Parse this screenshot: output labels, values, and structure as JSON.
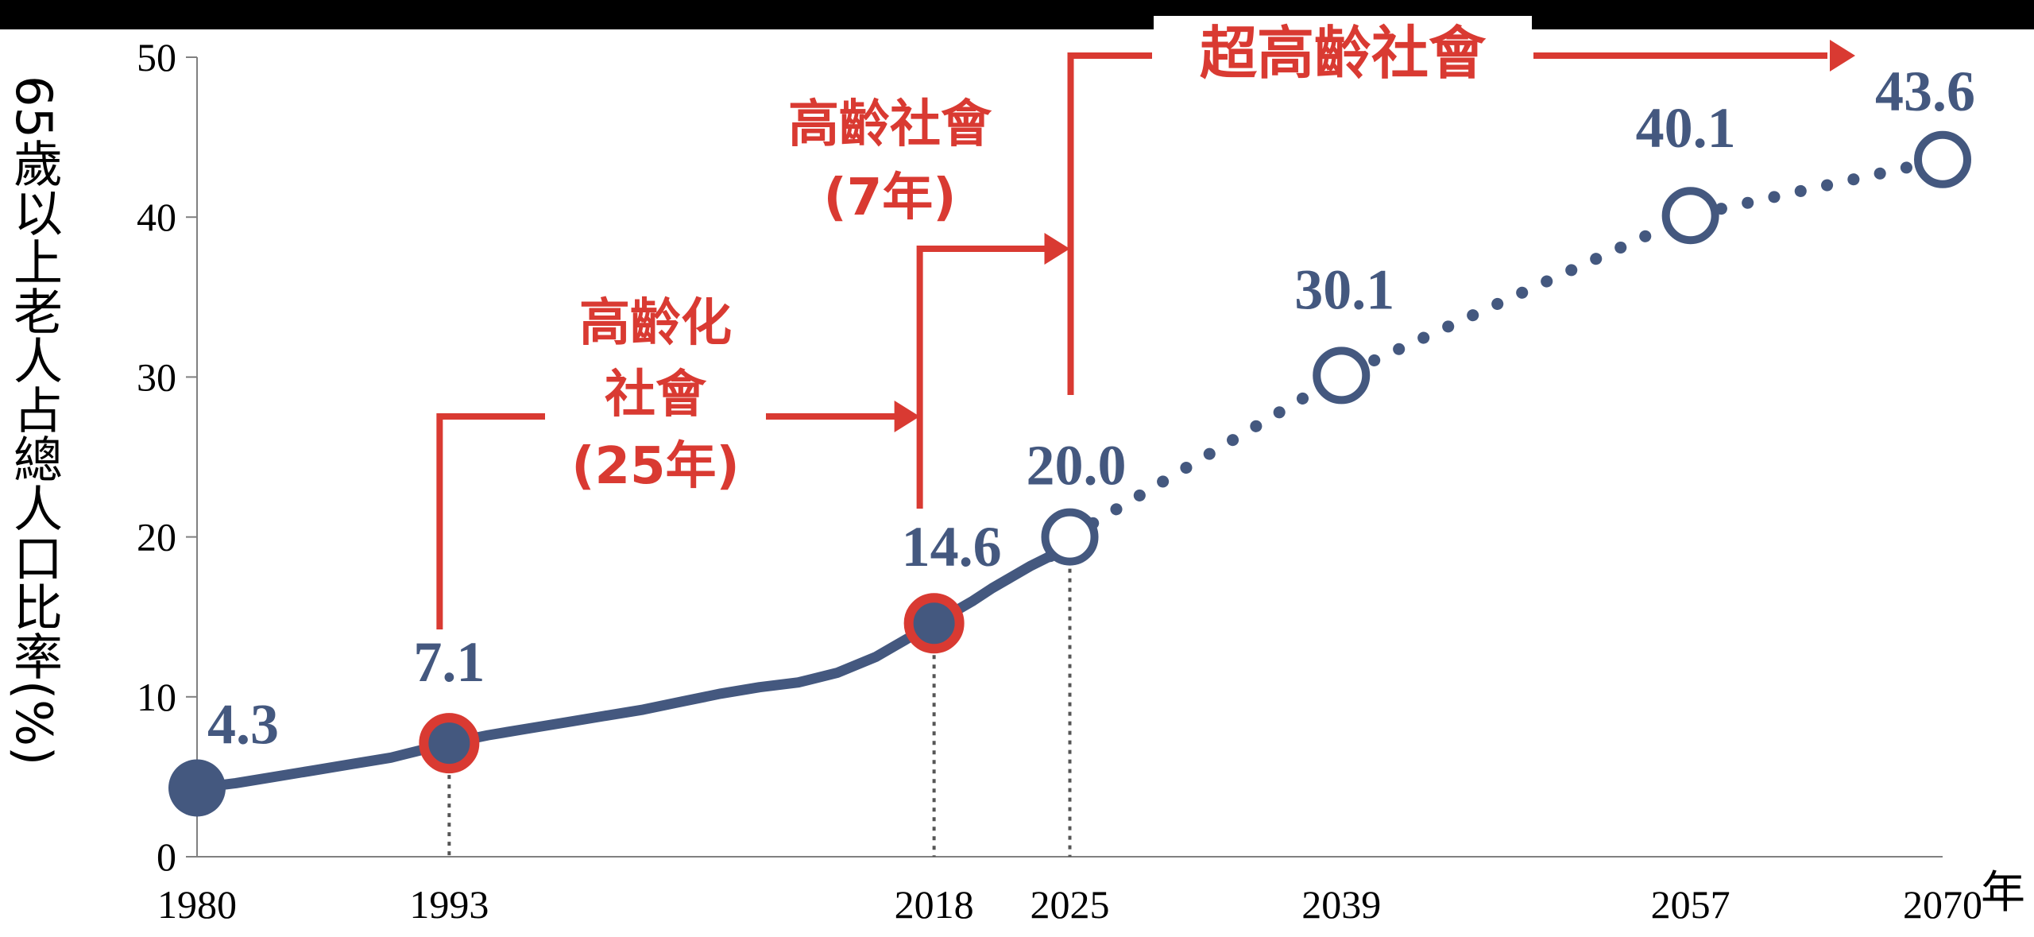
{
  "chart_data": {
    "type": "line",
    "ylabel": "65歲以上老人占總人口比率(%)",
    "xlabel": "年",
    "ylim": [
      0,
      50
    ],
    "yticks": [
      "0",
      "10",
      "20",
      "30",
      "40",
      "50"
    ],
    "xticks": [
      "1980",
      "1993",
      "2018",
      "2025",
      "2039",
      "2057",
      "2070"
    ],
    "xlim": [
      1980,
      2070
    ],
    "series": [
      {
        "type": "actual",
        "x": [
          1980,
          1982,
          1984,
          1986,
          1988,
          1990,
          1992,
          1993,
          1995,
          1997,
          1999,
          2001,
          2003,
          2005,
          2007,
          2009,
          2011,
          2013,
          2015,
          2016,
          2017,
          2018,
          2019,
          2020,
          2021,
          2022,
          2023,
          2024
        ],
        "y": [
          4.3,
          4.6,
          5.0,
          5.4,
          5.8,
          6.2,
          6.8,
          7.1,
          7.6,
          8.0,
          8.4,
          8.8,
          9.2,
          9.7,
          10.2,
          10.6,
          10.9,
          11.5,
          12.5,
          13.2,
          13.9,
          14.6,
          15.3,
          16.0,
          16.8,
          17.5,
          18.2,
          18.8
        ]
      },
      {
        "type": "projected",
        "x": [
          2025,
          2039,
          2057,
          2070
        ],
        "y": [
          20.0,
          30.1,
          40.1,
          43.6
        ]
      }
    ],
    "points": [
      {
        "x": 1980,
        "y": 4.3,
        "label": "4.3",
        "style": "filled"
      },
      {
        "x": 1993,
        "y": 7.1,
        "label": "7.1",
        "style": "milestone"
      },
      {
        "x": 2018,
        "y": 14.6,
        "label": "14.6",
        "style": "milestone"
      },
      {
        "x": 2025,
        "y": 20.0,
        "label": "20.0",
        "style": "hollow"
      },
      {
        "x": 2039,
        "y": 30.1,
        "label": "30.1",
        "style": "hollow"
      },
      {
        "x": 2057,
        "y": 40.1,
        "label": "40.1",
        "style": "hollow"
      },
      {
        "x": 2070,
        "y": 43.6,
        "label": "43.6",
        "style": "hollow"
      }
    ],
    "annotations": [
      {
        "lines": [
          "高齡化",
          "社會",
          "(25年)"
        ],
        "from": 1993,
        "to": 2018
      },
      {
        "lines": [
          "高齡社會",
          "(7年)"
        ],
        "from": 2018,
        "to": 2025
      },
      {
        "lines": [
          "超高齡社會"
        ],
        "from": 2025,
        "to": 2070
      }
    ],
    "colors": {
      "series": "#44587f",
      "annotation": "#d93a32",
      "axis": "#808080",
      "text": "#000000"
    }
  }
}
